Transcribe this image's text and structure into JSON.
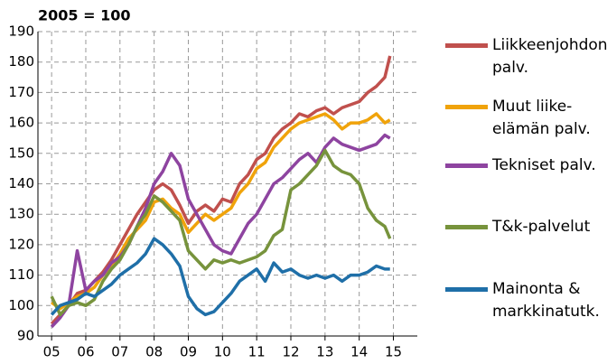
{
  "chart_data": {
    "type": "line",
    "title": "2005 = 100",
    "x": [
      5,
      5.25,
      5.5,
      5.75,
      6,
      6.25,
      6.5,
      6.75,
      7,
      7.25,
      7.5,
      7.75,
      8,
      8.25,
      8.5,
      8.75,
      9,
      9.25,
      9.5,
      9.75,
      10,
      10.25,
      10.5,
      10.75,
      11,
      11.25,
      11.5,
      11.75,
      12,
      12.25,
      12.5,
      12.75,
      13,
      13.25,
      13.5,
      13.75,
      14,
      14.25,
      14.5,
      14.75,
      14.9
    ],
    "series": [
      {
        "name": "Liikkeenjohdon palv.",
        "color": "#c0504d",
        "values": [
          94,
          97,
          100,
          104,
          105,
          108,
          111,
          115,
          120,
          125,
          130,
          134,
          138,
          140,
          138,
          133,
          127,
          131,
          133,
          131,
          135,
          134,
          140,
          143,
          148,
          150,
          155,
          158,
          160,
          163,
          162,
          164,
          165,
          163,
          165,
          166,
          167,
          170,
          172,
          175,
          182
        ]
      },
      {
        "name": "Muut liike-elämän palv.",
        "color": "#f0a30a",
        "values": [
          101,
          99,
          101,
          103,
          104,
          106,
          110,
          113,
          117,
          122,
          125,
          128,
          134,
          135,
          132,
          130,
          124,
          127,
          130,
          128,
          130,
          132,
          137,
          140,
          145,
          147,
          152,
          155,
          158,
          160,
          161,
          162,
          163,
          161,
          158,
          160,
          160,
          161,
          163,
          160,
          161
        ]
      },
      {
        "name": "Tekniset palv.",
        "color": "#8e44a0",
        "values": [
          93,
          96,
          100,
          118,
          105,
          108,
          110,
          114,
          116,
          120,
          126,
          132,
          140,
          144,
          150,
          146,
          135,
          130,
          125,
          120,
          118,
          117,
          122,
          127,
          130,
          135,
          140,
          142,
          145,
          148,
          150,
          147,
          152,
          155,
          153,
          152,
          151,
          152,
          153,
          156,
          155
        ]
      },
      {
        "name": "T&k-palvelut",
        "color": "#77933c",
        "values": [
          103,
          97,
          100,
          101,
          100,
          102,
          108,
          112,
          115,
          120,
          126,
          130,
          136,
          134,
          131,
          128,
          118,
          115,
          112,
          115,
          114,
          115,
          114,
          115,
          116,
          118,
          123,
          125,
          138,
          140,
          143,
          146,
          151,
          146,
          144,
          143,
          140,
          132,
          128,
          126,
          122
        ]
      },
      {
        "name": "Mainonta & markkinatutk.",
        "color": "#1f6fa8",
        "values": [
          97,
          100,
          101,
          102,
          104,
          103,
          105,
          107,
          110,
          112,
          114,
          117,
          122,
          120,
          117,
          113,
          103,
          99,
          97,
          98,
          101,
          104,
          108,
          110,
          112,
          108,
          114,
          111,
          112,
          110,
          109,
          110,
          109,
          110,
          108,
          110,
          110,
          111,
          113,
          112,
          112
        ]
      }
    ],
    "xlim": [
      4.6,
      15.7
    ],
    "xticks": [
      {
        "value": 5,
        "label": "05"
      },
      {
        "value": 6,
        "label": "06"
      },
      {
        "value": 7,
        "label": "07"
      },
      {
        "value": 8,
        "label": "08"
      },
      {
        "value": 9,
        "label": "09"
      },
      {
        "value": 10,
        "label": "10"
      },
      {
        "value": 11,
        "label": "11"
      },
      {
        "value": 12,
        "label": "12"
      },
      {
        "value": 13,
        "label": "13"
      },
      {
        "value": 14,
        "label": "14"
      },
      {
        "value": 15,
        "label": "15"
      }
    ],
    "ylim": [
      90,
      190
    ],
    "yticks": [
      90,
      100,
      110,
      120,
      130,
      140,
      150,
      160,
      170,
      180,
      190
    ],
    "grid": true
  }
}
